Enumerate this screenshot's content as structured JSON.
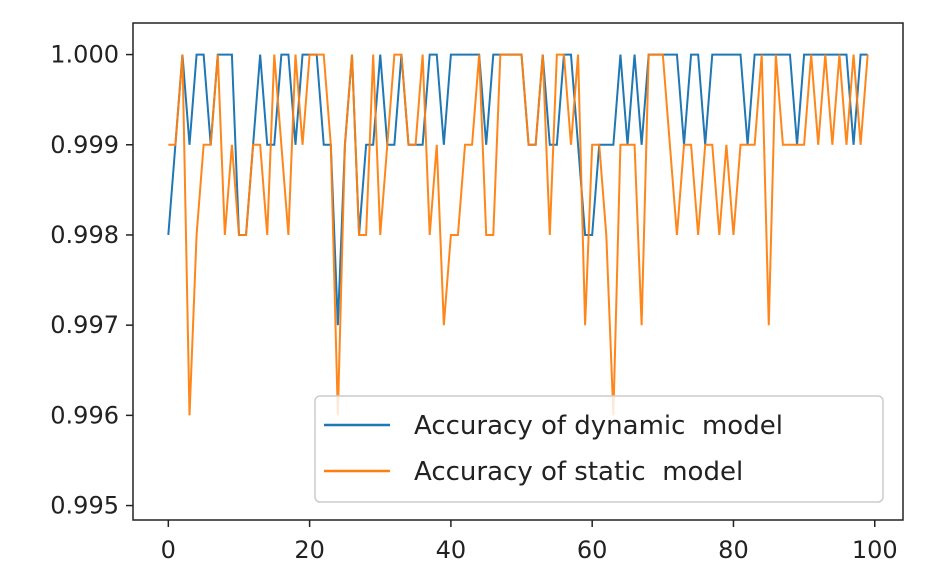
{
  "chart_data": {
    "type": "line",
    "title": "",
    "xlabel": "",
    "ylabel": "",
    "xlim": [
      -5,
      104
    ],
    "ylim": [
      0.99484,
      1.00035
    ],
    "x_ticks": [
      0,
      20,
      40,
      60,
      80,
      100
    ],
    "x_tick_labels": [
      "0",
      "20",
      "40",
      "60",
      "80",
      "100"
    ],
    "y_ticks": [
      0.995,
      0.996,
      0.997,
      0.998,
      0.999,
      1.0
    ],
    "y_tick_labels": [
      "0.995",
      "0.996",
      "0.997",
      "0.998",
      "0.999",
      "1.000"
    ],
    "grid": false,
    "legend_position": "lower-right",
    "x": [
      0,
      1,
      2,
      3,
      4,
      5,
      6,
      7,
      8,
      9,
      10,
      11,
      12,
      13,
      14,
      15,
      16,
      17,
      18,
      19,
      20,
      21,
      22,
      23,
      24,
      25,
      26,
      27,
      28,
      29,
      30,
      31,
      32,
      33,
      34,
      35,
      36,
      37,
      38,
      39,
      40,
      41,
      42,
      43,
      44,
      45,
      46,
      47,
      48,
      49,
      50,
      51,
      52,
      53,
      54,
      55,
      56,
      57,
      58,
      59,
      60,
      61,
      62,
      63,
      64,
      65,
      66,
      67,
      68,
      69,
      70,
      71,
      72,
      73,
      74,
      75,
      76,
      77,
      78,
      79,
      80,
      81,
      82,
      83,
      84,
      85,
      86,
      87,
      88,
      89,
      90,
      91,
      92,
      93,
      94,
      95,
      96,
      97,
      98,
      99
    ],
    "series": [
      {
        "name": "Accuracy of dynamic  model",
        "color": "#1f77b4",
        "values": [
          0.998,
          0.999,
          1.0,
          0.999,
          1.0,
          1.0,
          0.999,
          1.0,
          1.0,
          1.0,
          0.998,
          0.998,
          0.999,
          1.0,
          0.999,
          0.999,
          1.0,
          1.0,
          0.999,
          1.0,
          1.0,
          1.0,
          0.999,
          0.999,
          0.997,
          0.999,
          1.0,
          0.998,
          0.999,
          0.999,
          1.0,
          0.999,
          0.999,
          1.0,
          0.999,
          0.999,
          0.999,
          1.0,
          1.0,
          0.999,
          1.0,
          1.0,
          1.0,
          1.0,
          1.0,
          0.999,
          1.0,
          1.0,
          1.0,
          1.0,
          1.0,
          0.999,
          0.999,
          1.0,
          0.999,
          0.999,
          1.0,
          1.0,
          0.999,
          0.998,
          0.998,
          0.999,
          0.999,
          0.999,
          1.0,
          0.999,
          1.0,
          0.999,
          1.0,
          1.0,
          1.0,
          1.0,
          1.0,
          0.999,
          1.0,
          1.0,
          0.999,
          1.0,
          1.0,
          1.0,
          1.0,
          1.0,
          0.999,
          1.0,
          1.0,
          1.0,
          1.0,
          1.0,
          1.0,
          0.999,
          1.0,
          1.0,
          1.0,
          1.0,
          1.0,
          1.0,
          1.0,
          0.999,
          1.0,
          1.0
        ]
      },
      {
        "name": "Accuracy of static  model",
        "color": "#ff7f0e",
        "values": [
          0.999,
          0.999,
          1.0,
          0.996,
          0.998,
          0.999,
          0.999,
          1.0,
          0.998,
          0.999,
          0.998,
          0.998,
          0.999,
          0.999,
          0.998,
          1.0,
          0.999,
          0.998,
          1.0,
          0.999,
          1.0,
          1.0,
          1.0,
          0.999,
          0.996,
          0.999,
          1.0,
          0.998,
          0.998,
          1.0,
          0.998,
          0.999,
          1.0,
          1.0,
          0.999,
          0.999,
          1.0,
          0.998,
          0.999,
          0.997,
          0.998,
          0.998,
          0.999,
          0.999,
          1.0,
          0.998,
          0.998,
          1.0,
          1.0,
          1.0,
          1.0,
          0.999,
          0.999,
          1.0,
          0.998,
          1.0,
          1.0,
          0.999,
          1.0,
          0.997,
          0.999,
          0.999,
          0.998,
          0.996,
          0.999,
          0.999,
          0.999,
          0.997,
          1.0,
          1.0,
          1.0,
          0.999,
          0.998,
          0.999,
          0.999,
          0.998,
          0.999,
          0.999,
          0.998,
          0.999,
          0.998,
          0.999,
          0.999,
          0.999,
          1.0,
          0.997,
          1.0,
          0.999,
          0.999,
          0.999,
          0.999,
          1.0,
          0.999,
          1.0,
          0.999,
          1.0,
          0.999,
          1.0,
          0.999,
          1.0
        ]
      }
    ]
  }
}
